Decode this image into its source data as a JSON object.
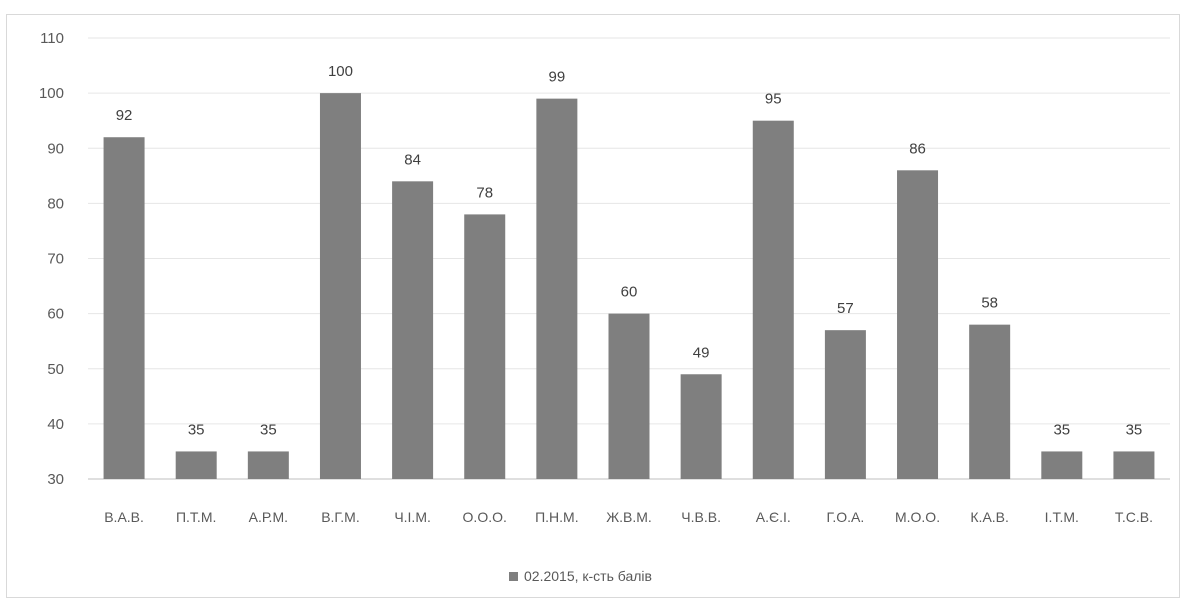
{
  "chart_data": {
    "type": "bar",
    "categories": [
      "В.А.В.",
      "П.Т.М.",
      "А.Р.М.",
      "В.Г.М.",
      "Ч.І.М.",
      "О.О.О.",
      "П.Н.М.",
      "Ж.В.М.",
      "Ч.В.В.",
      "А.Є.І.",
      "Г.О.А.",
      "М.О.О.",
      "К.А.В.",
      "І.Т.М.",
      "Т.С.В."
    ],
    "series": [
      {
        "name": "02.2015, к-сть балів",
        "values": [
          92,
          35,
          35,
          100,
          84,
          78,
          99,
          60,
          49,
          95,
          57,
          86,
          58,
          35,
          35
        ]
      }
    ],
    "ylim": [
      30,
      110
    ],
    "yticks": [
      30,
      40,
      50,
      60,
      70,
      80,
      90,
      100,
      110
    ],
    "grid": true,
    "legend_position": "bottom",
    "colors": {
      "bar": "#7f7f7f"
    }
  }
}
